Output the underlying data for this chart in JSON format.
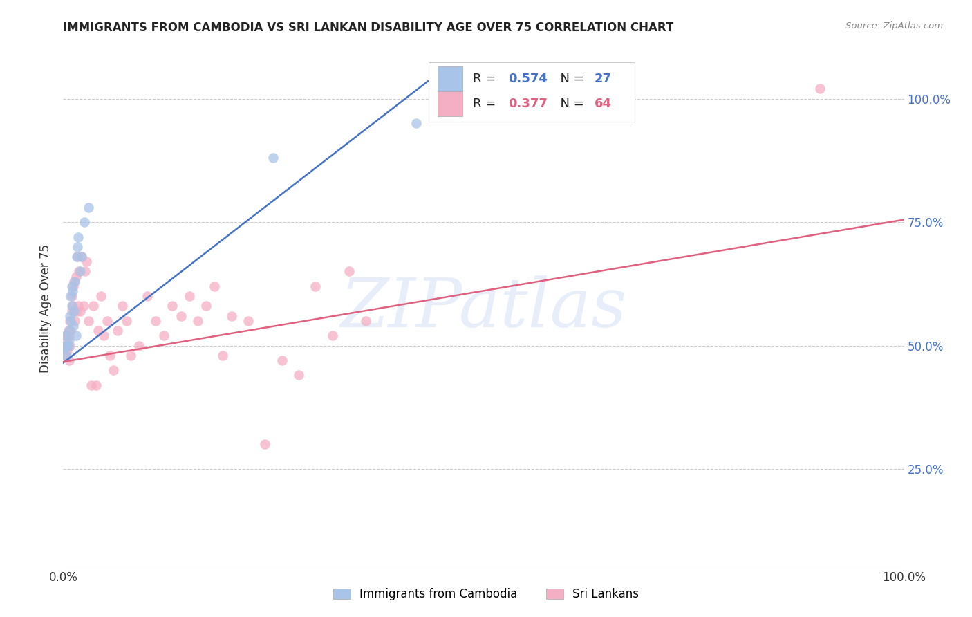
{
  "title": "IMMIGRANTS FROM CAMBODIA VS SRI LANKAN DISABILITY AGE OVER 75 CORRELATION CHART",
  "source": "Source: ZipAtlas.com",
  "ylabel": "Disability Age Over 75",
  "ytick_labels": [
    "25.0%",
    "50.0%",
    "75.0%",
    "100.0%"
  ],
  "ytick_values": [
    0.25,
    0.5,
    0.75,
    1.0
  ],
  "xtick_left": "0.0%",
  "xtick_right": "100.0%",
  "xlim": [
    0.0,
    1.0
  ],
  "ylim": [
    0.05,
    1.1
  ],
  "legend_label_blue": "Immigrants from Cambodia",
  "legend_label_pink": "Sri Lankans",
  "blue_dot_color": "#a8c4e8",
  "pink_dot_color": "#f5afc4",
  "blue_line_color": "#4472c4",
  "pink_line_color": "#e06080",
  "blue_dot_alpha": 0.75,
  "pink_dot_alpha": 0.75,
  "watermark_color": "#d0dff5",
  "watermark_alpha": 0.5,
  "blue_line_x0": 0.0,
  "blue_line_x1": 0.46,
  "blue_line_y0": 0.465,
  "blue_line_y1": 1.07,
  "pink_line_x0": 0.0,
  "pink_line_x1": 1.0,
  "pink_line_y0": 0.467,
  "pink_line_y1": 0.755,
  "cambodia_x": [
    0.001,
    0.002,
    0.003,
    0.004,
    0.005,
    0.006,
    0.007,
    0.007,
    0.008,
    0.009,
    0.009,
    0.01,
    0.01,
    0.011,
    0.012,
    0.013,
    0.014,
    0.015,
    0.016,
    0.017,
    0.018,
    0.02,
    0.022,
    0.025,
    0.03,
    0.25,
    0.42
  ],
  "cambodia_y": [
    0.495,
    0.5,
    0.52,
    0.48,
    0.5,
    0.5,
    0.51,
    0.53,
    0.56,
    0.55,
    0.6,
    0.58,
    0.62,
    0.61,
    0.54,
    0.57,
    0.63,
    0.52,
    0.68,
    0.7,
    0.72,
    0.65,
    0.68,
    0.75,
    0.78,
    0.88,
    0.95
  ],
  "srilanka_x": [
    0.001,
    0.002,
    0.003,
    0.004,
    0.005,
    0.005,
    0.006,
    0.006,
    0.007,
    0.007,
    0.008,
    0.008,
    0.009,
    0.01,
    0.01,
    0.011,
    0.012,
    0.013,
    0.014,
    0.015,
    0.016,
    0.017,
    0.018,
    0.019,
    0.02,
    0.022,
    0.024,
    0.026,
    0.028,
    0.03,
    0.033,
    0.036,
    0.039,
    0.042,
    0.045,
    0.048,
    0.052,
    0.056,
    0.06,
    0.065,
    0.07,
    0.075,
    0.08,
    0.09,
    0.1,
    0.11,
    0.12,
    0.13,
    0.14,
    0.15,
    0.16,
    0.17,
    0.18,
    0.19,
    0.2,
    0.22,
    0.24,
    0.26,
    0.28,
    0.3,
    0.32,
    0.34,
    0.36,
    0.9
  ],
  "srilanka_y": [
    0.495,
    0.5,
    0.48,
    0.52,
    0.49,
    0.51,
    0.5,
    0.53,
    0.47,
    0.52,
    0.5,
    0.55,
    0.53,
    0.57,
    0.6,
    0.58,
    0.62,
    0.63,
    0.55,
    0.64,
    0.57,
    0.68,
    0.58,
    0.65,
    0.57,
    0.68,
    0.58,
    0.65,
    0.67,
    0.55,
    0.42,
    0.58,
    0.42,
    0.53,
    0.6,
    0.52,
    0.55,
    0.48,
    0.45,
    0.53,
    0.58,
    0.55,
    0.48,
    0.5,
    0.6,
    0.55,
    0.52,
    0.58,
    0.56,
    0.6,
    0.55,
    0.58,
    0.62,
    0.48,
    0.56,
    0.55,
    0.3,
    0.47,
    0.44,
    0.62,
    0.52,
    0.65,
    0.55,
    1.02
  ]
}
